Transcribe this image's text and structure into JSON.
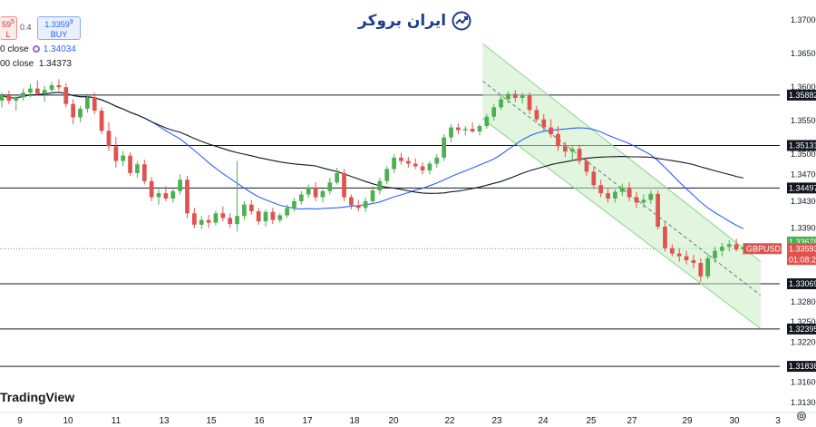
{
  "header": {
    "sell_price": "59",
    "sell_suffix": "5",
    "sell_label": "L",
    "spread": "0.4",
    "buy_price": "1.3359",
    "buy_suffix": "9",
    "buy_label": "BUY",
    "indicator1_label": "0 close",
    "indicator1_value": "1.34034",
    "indicator2_label": "00 close",
    "indicator2_value": "1.34373"
  },
  "brand": {
    "text": "ایران بروکر",
    "icon": "trend-chart-icon"
  },
  "watermark": "TradingView",
  "icons": {
    "settings": "gear-icon"
  },
  "colors": {
    "up": "#26a69a",
    "down": "#ef5350",
    "up_fill": "#4caf50",
    "down_fill": "#e0524e",
    "ma_fast": "#2962ff",
    "ma_slow": "#131722",
    "channel": "#8bd48a",
    "current_line": "#4caf50"
  },
  "chart_data": {
    "type": "candlestick",
    "symbol": "GBPUSD",
    "countdown": "01:08:2",
    "ylim": [
      1.3115,
      1.373
    ],
    "price_ticks": [
      "1.37000",
      "1.36500",
      "1.36000",
      "1.35500",
      "1.35000",
      "1.34700",
      "1.34300",
      "1.33900",
      "1.33500",
      "1.32800",
      "1.32500",
      "1.32200",
      "1.31600",
      "1.31300"
    ],
    "x_ticks": [
      "9",
      "10",
      "11",
      "13",
      "15",
      "16",
      "17",
      "18",
      "20",
      "22",
      "23",
      "24",
      "25",
      "27",
      "29",
      "30",
      "3"
    ],
    "level_labels": [
      {
        "value": 1.35882,
        "label": "1.35882"
      },
      {
        "value": 1.35131,
        "label": "1.35131"
      },
      {
        "value": 1.34497,
        "label": "1.34497"
      },
      {
        "value": 1.33069,
        "label": "1.33069"
      },
      {
        "value": 1.32395,
        "label": "1.32395"
      },
      {
        "value": 1.31838,
        "label": "1.31838"
      }
    ],
    "current_price_labels": [
      {
        "label": "1.33678",
        "value": 1.33678
      },
      {
        "label": "1.33593",
        "value": 1.33593
      }
    ],
    "channel": {
      "upper": [
        [
          22.7,
          1.3665
        ],
        [
          30.6,
          1.334
        ]
      ],
      "lower": [
        [
          22.7,
          1.3553
        ],
        [
          30.6,
          1.324
        ]
      ]
    },
    "candles": [
      [
        1.358,
        1.3592,
        1.357,
        1.3588
      ],
      [
        1.3588,
        1.3595,
        1.3575,
        1.358
      ],
      [
        1.358,
        1.3588,
        1.3565,
        1.3585
      ],
      [
        1.3585,
        1.3598,
        1.358,
        1.3592
      ],
      [
        1.3592,
        1.3605,
        1.3585,
        1.3598
      ],
      [
        1.3598,
        1.361,
        1.3588,
        1.359
      ],
      [
        1.359,
        1.3602,
        1.3578,
        1.3596
      ],
      [
        1.3596,
        1.3608,
        1.359,
        1.3603
      ],
      [
        1.3603,
        1.3612,
        1.3595,
        1.36
      ],
      [
        1.36,
        1.3606,
        1.357,
        1.3575
      ],
      [
        1.3575,
        1.3582,
        1.3545,
        1.3555
      ],
      [
        1.3555,
        1.3572,
        1.3548,
        1.3568
      ],
      [
        1.3568,
        1.359,
        1.3562,
        1.3585
      ],
      [
        1.3585,
        1.3592,
        1.356,
        1.3565
      ],
      [
        1.3565,
        1.357,
        1.353,
        1.3535
      ],
      [
        1.3535,
        1.3548,
        1.3505,
        1.3512
      ],
      [
        1.3512,
        1.3526,
        1.348,
        1.349
      ],
      [
        1.349,
        1.3505,
        1.3482,
        1.3498
      ],
      [
        1.3498,
        1.3503,
        1.3468,
        1.3472
      ],
      [
        1.3472,
        1.349,
        1.3465,
        1.3485
      ],
      [
        1.3485,
        1.3492,
        1.3455,
        1.346
      ],
      [
        1.346,
        1.3466,
        1.343,
        1.3436
      ],
      [
        1.3436,
        1.3448,
        1.3425,
        1.3442
      ],
      [
        1.3442,
        1.3452,
        1.343,
        1.3434
      ],
      [
        1.3434,
        1.3448,
        1.3428,
        1.3445
      ],
      [
        1.3445,
        1.347,
        1.344,
        1.3462
      ],
      [
        1.3462,
        1.3468,
        1.3405,
        1.3412
      ],
      [
        1.3412,
        1.342,
        1.339,
        1.3395
      ],
      [
        1.3395,
        1.3408,
        1.3388,
        1.3402
      ],
      [
        1.3402,
        1.341,
        1.339,
        1.3398
      ],
      [
        1.3398,
        1.3416,
        1.3394,
        1.3412
      ],
      [
        1.3412,
        1.3422,
        1.34,
        1.3405
      ],
      [
        1.3405,
        1.3412,
        1.339,
        1.3396
      ],
      [
        1.3396,
        1.349,
        1.3385,
        1.3408
      ],
      [
        1.3408,
        1.343,
        1.3402,
        1.3425
      ],
      [
        1.3425,
        1.3432,
        1.341,
        1.3415
      ],
      [
        1.3415,
        1.342,
        1.3395,
        1.34
      ],
      [
        1.34,
        1.3418,
        1.3392,
        1.3414
      ],
      [
        1.3414,
        1.342,
        1.3396,
        1.3402
      ],
      [
        1.3402,
        1.3412,
        1.3398,
        1.3409
      ],
      [
        1.3409,
        1.3425,
        1.3405,
        1.342
      ],
      [
        1.342,
        1.3435,
        1.3415,
        1.343
      ],
      [
        1.343,
        1.3445,
        1.3425,
        1.344
      ],
      [
        1.344,
        1.3455,
        1.3435,
        1.345
      ],
      [
        1.345,
        1.3458,
        1.343,
        1.3436
      ],
      [
        1.3436,
        1.3448,
        1.3428,
        1.3445
      ],
      [
        1.3445,
        1.3465,
        1.344,
        1.3458
      ],
      [
        1.3458,
        1.348,
        1.3455,
        1.3472
      ],
      [
        1.3472,
        1.3478,
        1.343,
        1.3436
      ],
      [
        1.3436,
        1.344,
        1.3418,
        1.3424
      ],
      [
        1.3424,
        1.3432,
        1.3415,
        1.342
      ],
      [
        1.342,
        1.3436,
        1.3414,
        1.343
      ],
      [
        1.343,
        1.3452,
        1.3426,
        1.3446
      ],
      [
        1.3446,
        1.3465,
        1.344,
        1.346
      ],
      [
        1.346,
        1.3482,
        1.3455,
        1.3478
      ],
      [
        1.3478,
        1.35,
        1.3472,
        1.3495
      ],
      [
        1.3495,
        1.3502,
        1.3485,
        1.349
      ],
      [
        1.349,
        1.3496,
        1.348,
        1.3486
      ],
      [
        1.3486,
        1.3494,
        1.3478,
        1.3482
      ],
      [
        1.3482,
        1.3488,
        1.347,
        1.3476
      ],
      [
        1.3476,
        1.349,
        1.347,
        1.3486
      ],
      [
        1.3486,
        1.35,
        1.348,
        1.3495
      ],
      [
        1.3495,
        1.353,
        1.349,
        1.3525
      ],
      [
        1.3525,
        1.3545,
        1.3518,
        1.354
      ],
      [
        1.354,
        1.3546,
        1.353,
        1.3536
      ],
      [
        1.3536,
        1.3542,
        1.3528,
        1.3538
      ],
      [
        1.3538,
        1.3548,
        1.3532,
        1.3534
      ],
      [
        1.3534,
        1.3545,
        1.3528,
        1.3542
      ],
      [
        1.3542,
        1.356,
        1.3538,
        1.3556
      ],
      [
        1.3556,
        1.3575,
        1.355,
        1.357
      ],
      [
        1.357,
        1.3588,
        1.3566,
        1.3582
      ],
      [
        1.3582,
        1.3594,
        1.3576,
        1.359
      ],
      [
        1.359,
        1.3596,
        1.3578,
        1.3584
      ],
      [
        1.3584,
        1.3592,
        1.3576,
        1.3588
      ],
      [
        1.3588,
        1.3592,
        1.356,
        1.3566
      ],
      [
        1.3566,
        1.3572,
        1.3548,
        1.3552
      ],
      [
        1.3552,
        1.356,
        1.3535,
        1.354
      ],
      [
        1.354,
        1.3552,
        1.3525,
        1.353
      ],
      [
        1.353,
        1.3542,
        1.3505,
        1.3512
      ],
      [
        1.3512,
        1.3518,
        1.3496,
        1.3504
      ],
      [
        1.3504,
        1.3512,
        1.349,
        1.3508
      ],
      [
        1.3508,
        1.3514,
        1.3485,
        1.349
      ],
      [
        1.349,
        1.3496,
        1.3468,
        1.3474
      ],
      [
        1.3474,
        1.348,
        1.3448,
        1.3454
      ],
      [
        1.3454,
        1.3462,
        1.3436,
        1.3442
      ],
      [
        1.3442,
        1.345,
        1.3428,
        1.3434
      ],
      [
        1.3434,
        1.3448,
        1.3428,
        1.3444
      ],
      [
        1.3444,
        1.3456,
        1.3438,
        1.345
      ],
      [
        1.345,
        1.3458,
        1.343,
        1.3436
      ],
      [
        1.3436,
        1.3444,
        1.342,
        1.3428
      ],
      [
        1.3428,
        1.344,
        1.342,
        1.3432
      ],
      [
        1.3432,
        1.3446,
        1.3426,
        1.3441
      ],
      [
        1.3441,
        1.3446,
        1.3388,
        1.3392
      ],
      [
        1.3392,
        1.3398,
        1.3355,
        1.336
      ],
      [
        1.336,
        1.3366,
        1.3348,
        1.3352
      ],
      [
        1.3352,
        1.336,
        1.334,
        1.3348
      ],
      [
        1.3348,
        1.3356,
        1.3336,
        1.3342
      ],
      [
        1.3342,
        1.335,
        1.333,
        1.3338
      ],
      [
        1.3338,
        1.3345,
        1.331,
        1.3318
      ],
      [
        1.3318,
        1.3352,
        1.3314,
        1.3345
      ],
      [
        1.3345,
        1.3362,
        1.3338,
        1.3356
      ],
      [
        1.3356,
        1.3368,
        1.3348,
        1.3362
      ],
      [
        1.3362,
        1.3372,
        1.3355,
        1.3366
      ],
      [
        1.3366,
        1.3374,
        1.3355,
        1.3358
      ],
      [
        1.3358,
        1.3368,
        1.335,
        1.3362
      ]
    ]
  }
}
